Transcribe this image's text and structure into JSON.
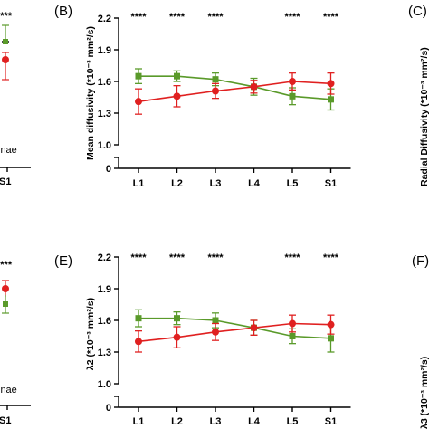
{
  "colors": {
    "red": "#e02020",
    "green": "#5a9a2a"
  },
  "fragments": {
    "left_top_stars": "****",
    "left_top_label": "inae",
    "left_top_tick": "S1",
    "left_bottom_stars": "****",
    "left_bottom_label": "inae",
    "left_bottom_tick": "S1",
    "right_top_letter": "(C)",
    "right_top_ylabel": "Radial Diffusivity (*10⁻³ mm²/s)",
    "right_bottom_letter": "(F)",
    "right_bottom_ylabel": "λ3 (*10⁻³ mm²/s)"
  },
  "chart_data": [
    {
      "panel": "(B)",
      "type": "line",
      "ylabel": "Mean diffusivity (*10⁻³ mm²/s)",
      "categories": [
        "L1",
        "L2",
        "L3",
        "L4",
        "L5",
        "S1"
      ],
      "yticks": [
        "1.0",
        "1.3",
        "1.6",
        "1.9",
        "2.2"
      ],
      "ylim": [
        1.0,
        2.2
      ],
      "broken_axis_lower_tick": "0",
      "significance": [
        "****",
        "****",
        "****",
        "",
        "****",
        "****"
      ],
      "series": [
        {
          "color": "red",
          "marker": "circle",
          "values": [
            1.41,
            1.46,
            1.51,
            1.55,
            1.6,
            1.58
          ],
          "errors": [
            0.12,
            0.1,
            0.07,
            0.06,
            0.08,
            0.1
          ]
        },
        {
          "color": "green",
          "marker": "square",
          "values": [
            1.65,
            1.65,
            1.62,
            1.55,
            1.46,
            1.43
          ],
          "errors": [
            0.07,
            0.05,
            0.06,
            0.08,
            0.08,
            0.1
          ]
        }
      ]
    },
    {
      "panel": "(E)",
      "type": "line",
      "ylabel": "λ2 (*10⁻³ mm²/s)",
      "categories": [
        "L1",
        "L2",
        "L3",
        "L4",
        "L5",
        "S1"
      ],
      "yticks": [
        "1.0",
        "1.3",
        "1.6",
        "1.9",
        "2.2"
      ],
      "ylim": [
        1.0,
        2.2
      ],
      "broken_axis_lower_tick": "0",
      "significance": [
        "****",
        "****",
        "****",
        "",
        "****",
        "****"
      ],
      "series": [
        {
          "color": "red",
          "marker": "circle",
          "values": [
            1.4,
            1.44,
            1.49,
            1.53,
            1.57,
            1.56
          ],
          "errors": [
            0.1,
            0.1,
            0.08,
            0.07,
            0.08,
            0.09
          ]
        },
        {
          "color": "green",
          "marker": "square",
          "values": [
            1.62,
            1.62,
            1.6,
            1.53,
            1.45,
            1.43
          ],
          "errors": [
            0.08,
            0.06,
            0.07,
            0.07,
            0.07,
            0.13
          ]
        }
      ]
    }
  ]
}
